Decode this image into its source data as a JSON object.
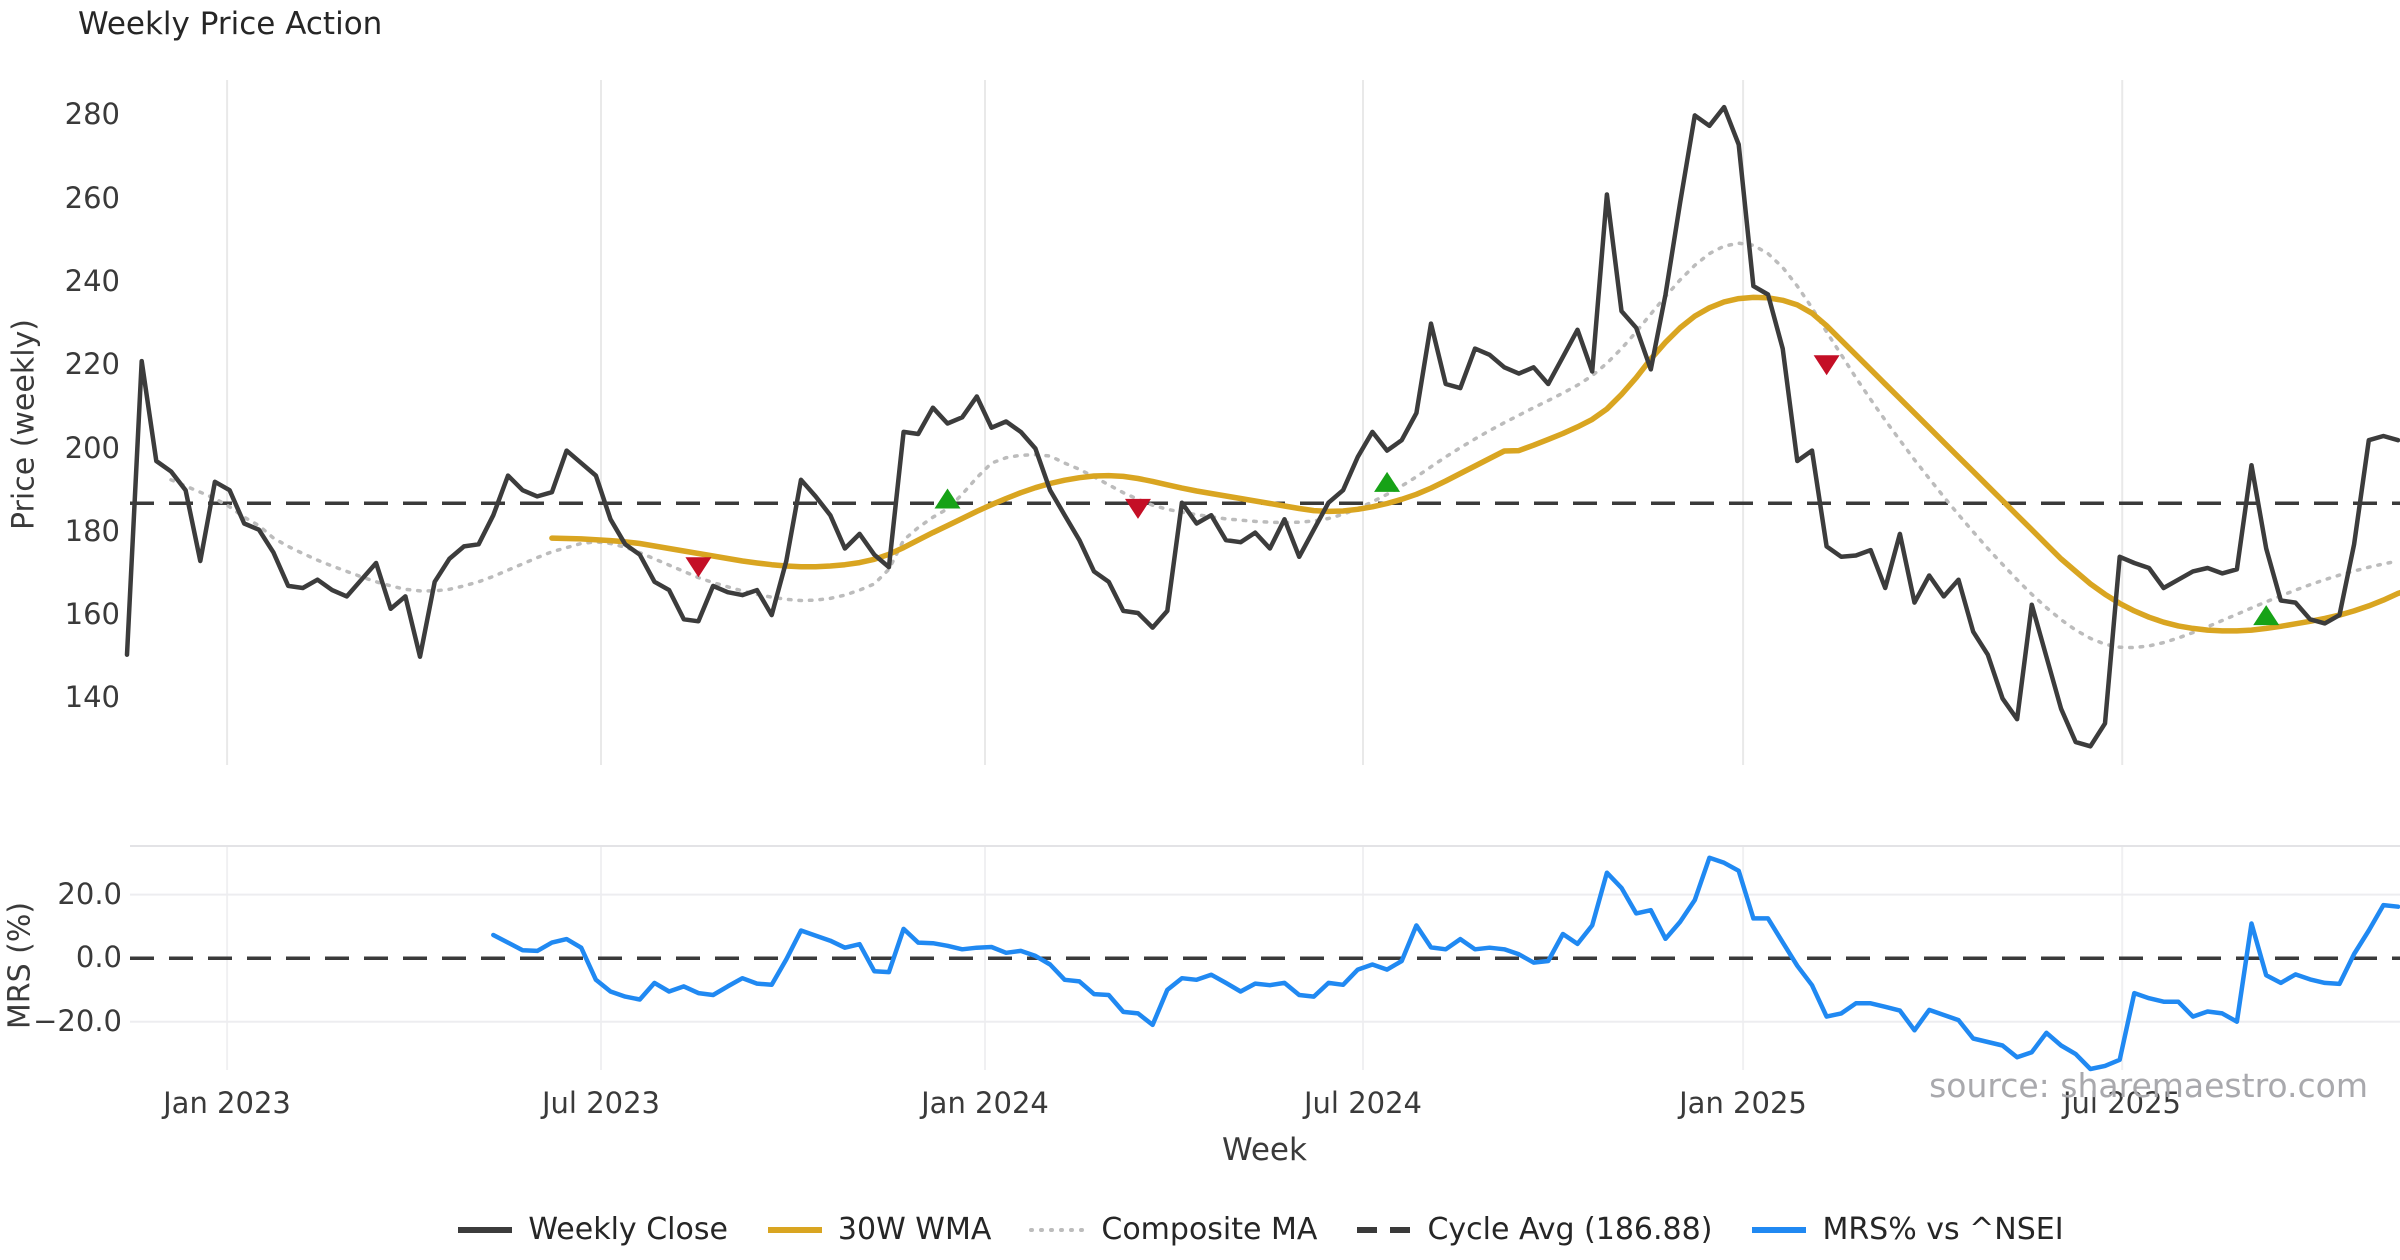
{
  "title": "Weekly Price Action",
  "watermark": "source: sharemaestro.com",
  "colors": {
    "close": "#3c3c3c",
    "wma": "#d9a521",
    "composite": "#bcbcbc",
    "cycle": "#3a3a3a",
    "mrs": "#2089f2",
    "buy": "#17a217",
    "sell": "#c40f26",
    "grid": "#e9e9e9",
    "panel_border": "#e3e3e6"
  },
  "x_axis": {
    "label": "Week",
    "ticks": [
      {
        "pos": 6.83,
        "label": "Jan 2023"
      },
      {
        "pos": 32.35,
        "label": "Jul 2023"
      },
      {
        "pos": 58.56,
        "label": "Jan 2024"
      },
      {
        "pos": 84.36,
        "label": "Jul 2024"
      },
      {
        "pos": 110.3,
        "label": "Jan 2025"
      },
      {
        "pos": 136.17,
        "label": "Jul 2025"
      }
    ]
  },
  "legend": [
    {
      "label": "Weekly Close",
      "style": "solid",
      "color": "close"
    },
    {
      "label": "30W WMA",
      "style": "solid",
      "color": "wma"
    },
    {
      "label": "Composite MA",
      "style": "dotted",
      "color": "composite"
    },
    {
      "label": "Cycle Avg (186.88)",
      "style": "dashed",
      "color": "cycle"
    },
    {
      "label": "MRS% vs ^NSEI",
      "style": "solid",
      "color": "mrs"
    }
  ],
  "chart_data": [
    {
      "id": "price",
      "type": "line",
      "title": "Weekly Price Action",
      "ylabel": "Price (weekly)",
      "x_unit": "week_index",
      "xlim": [
        0,
        155
      ],
      "ylim": [
        124,
        288.5
      ],
      "yticks": [
        140,
        160,
        180,
        200,
        220,
        240,
        260,
        280
      ],
      "grid": "vertical",
      "cycle_avg": 186.88,
      "series": [
        {
          "name": "Weekly Close",
          "start": 0,
          "values": [
            150.5,
            221,
            197,
            194.5,
            190,
            173,
            192,
            190,
            182,
            180.5,
            175,
            167,
            166.5,
            168.5,
            166,
            164.5,
            168.5,
            172.5,
            161.5,
            164.5,
            150,
            168,
            173.5,
            176.5,
            177,
            184,
            193.5,
            190,
            188.5,
            189.5,
            199.5,
            196.5,
            193.5,
            183,
            177,
            174.5,
            168,
            166,
            159,
            158.5,
            167,
            165.5,
            164.8,
            166,
            160,
            173,
            192.5,
            188.5,
            184,
            176,
            179.5,
            174.5,
            171.5,
            204,
            203.5,
            209.8,
            206,
            207.5,
            212.5,
            205,
            206.5,
            204,
            200,
            190,
            184,
            178,
            170.5,
            168,
            161,
            160.5,
            157,
            161,
            187,
            182,
            184,
            178,
            177.5,
            179.8,
            176,
            183,
            174,
            180.5,
            187,
            190,
            198,
            204,
            199.5,
            202,
            208.5,
            230,
            215.5,
            214.5,
            224,
            222.5,
            219.5,
            218,
            219.5,
            215.5,
            222,
            228.5,
            218.5,
            261,
            233,
            229,
            219,
            237,
            259,
            280,
            277.5,
            282,
            273,
            239,
            237,
            224,
            197,
            199.5,
            176.5,
            174,
            174.3,
            175.6,
            166.5,
            179.5,
            163,
            169.5,
            164.5,
            168.5,
            156,
            150.5,
            140,
            135,
            162.5,
            150,
            137.5,
            129.5,
            128.5,
            134,
            174,
            172.5,
            171.3,
            166.5,
            168.5,
            170.5,
            171.3,
            170,
            171,
            196,
            176,
            163.5,
            163,
            159,
            158,
            160,
            177,
            202,
            203,
            202
          ]
        },
        {
          "name": "30W WMA",
          "start": 29,
          "values": [
            178.5,
            178.4,
            178.3,
            178.1,
            177.9,
            177.6,
            177.2,
            176.6,
            176,
            175.4,
            174.8,
            174.2,
            173.6,
            173,
            172.5,
            172.1,
            171.8,
            171.6,
            171.6,
            171.8,
            172.1,
            172.6,
            173.4,
            174.6,
            176.2,
            178,
            179.8,
            181.5,
            183.2,
            184.9,
            186.5,
            188,
            189.4,
            190.6,
            191.6,
            192.4,
            193,
            193.4,
            193.5,
            193.3,
            192.8,
            192.1,
            191.3,
            190.5,
            189.8,
            189.2,
            188.6,
            188,
            187.4,
            186.8,
            186.2,
            185.6,
            185.1,
            184.9,
            185,
            185.4,
            186,
            186.8,
            187.8,
            189,
            190.5,
            192.2,
            194,
            195.8,
            197.6,
            199.4,
            199.5,
            200.8,
            202.2,
            203.6,
            205.2,
            207,
            209.5,
            213,
            217,
            221.5,
            225.5,
            229,
            231.8,
            233.8,
            235.2,
            236,
            236.3,
            236.2,
            235.6,
            234.5,
            232.5,
            229.5,
            226,
            222.5,
            219,
            215.5,
            212,
            208.5,
            205,
            201.5,
            198,
            194.5,
            191,
            187.5,
            184,
            180.5,
            177,
            173.5,
            170.5,
            167.5,
            165,
            162.8,
            161,
            159.5,
            158.3,
            157.4,
            156.8,
            156.4,
            156.2,
            156.2,
            156.4,
            156.8,
            157.3,
            157.9,
            158.5,
            159.2,
            160,
            161,
            162.2,
            163.6,
            165.2,
            166.3
          ]
        },
        {
          "name": "Composite MA",
          "start": 3,
          "values": [
            192.5,
            191,
            189.5,
            188,
            186,
            183.5,
            181.5,
            178.5,
            176.5,
            174.8,
            173.2,
            171.8,
            170.5,
            169.2,
            168,
            167,
            166.2,
            165.8,
            165.8,
            166.2,
            167,
            168,
            169.3,
            170.8,
            172.3,
            173.8,
            175.2,
            176.2,
            177.2,
            177.6,
            177.2,
            176.3,
            175,
            173.5,
            172,
            170.5,
            169,
            167.8,
            166.8,
            165.8,
            165,
            164.3,
            163.8,
            163.5,
            163.6,
            164,
            164.8,
            166,
            167.5,
            171,
            178,
            181,
            183.5,
            185.5,
            189,
            193,
            196.5,
            197.8,
            198.4,
            198.5,
            198.2,
            196.5,
            195,
            193.2,
            191.3,
            189.4,
            187.8,
            186.4,
            185.4,
            184.7,
            184.1,
            183.6,
            183.1,
            182.8,
            182.5,
            182.3,
            182.2,
            182.3,
            182.6,
            183.2,
            184.2,
            185.6,
            187.2,
            189,
            191,
            193.2,
            195.6,
            198,
            200.2,
            202.3,
            204.3,
            206.2,
            208,
            209.8,
            211.5,
            213.3,
            215.2,
            217.5,
            220.5,
            224,
            228,
            232.3,
            236.5,
            240.5,
            244,
            246.8,
            248.6,
            249.3,
            248.8,
            246.8,
            243.5,
            239,
            233.8,
            228,
            222.5,
            217,
            211.8,
            206.8,
            202,
            197.3,
            192.8,
            188.4,
            184.1,
            180,
            176,
            172.2,
            168.5,
            165,
            161.8,
            158.9,
            156.4,
            154.4,
            153,
            152.3,
            152.2,
            152.6,
            153.4,
            154.5,
            155.8,
            157.2,
            158.7,
            160.2,
            161.7,
            163.2,
            164.6,
            166,
            167.3,
            168.5,
            169.6,
            170.6,
            171.5,
            172.3,
            173
          ]
        }
      ],
      "buy_markers": [
        {
          "x": 56,
          "y": 188
        },
        {
          "x": 86,
          "y": 192
        },
        {
          "x": 146,
          "y": 160
        }
      ],
      "sell_markers": [
        {
          "x": 39,
          "y": 171.5
        },
        {
          "x": 69,
          "y": 185.5
        },
        {
          "x": 116,
          "y": 220
        }
      ]
    },
    {
      "id": "mrs",
      "type": "line",
      "ylabel": "MRS (%)",
      "xlabel": "Week",
      "x_unit": "week_index",
      "xlim": [
        0,
        155
      ],
      "ylim": [
        -35.2,
        35.3
      ],
      "yticks": [
        20,
        0,
        -20
      ],
      "ytick_labels": [
        "20.0",
        "0.0",
        "−20.0"
      ],
      "grid": "horizontal",
      "zero_line": 0,
      "series": [
        {
          "name": "MRS% vs ^NSEI",
          "start": 25,
          "values": [
            7.3,
            4.9,
            2.5,
            2.3,
            4.9,
            6,
            3.3,
            -6.8,
            -10.5,
            -12.1,
            -13,
            -7.8,
            -10.5,
            -8.9,
            -11,
            -11.6,
            -8.9,
            -6.3,
            -8,
            -8.4,
            -0.4,
            8.7,
            7.1,
            5.5,
            3.3,
            4.4,
            -4.1,
            -4.4,
            9.2,
            4.9,
            4.7,
            3.9,
            2.8,
            3.3,
            3.5,
            1.7,
            2.3,
            0.7,
            -2,
            -6.8,
            -7.3,
            -11.3,
            -11.6,
            -16.9,
            -17.4,
            -21,
            -10,
            -6.3,
            -6.8,
            -5.2,
            -7.8,
            -10.5,
            -8,
            -8.5,
            -7.8,
            -11.6,
            -12.1,
            -7.8,
            -8.4,
            -3.6,
            -2,
            -3.6,
            -0.9,
            10.3,
            3.4,
            2.8,
            6,
            2.8,
            3.3,
            2.8,
            1.2,
            -1.4,
            -0.9,
            7.6,
            4.5,
            10.3,
            26.9,
            22.1,
            14.1,
            15.1,
            6.1,
            11.4,
            18.3,
            31.6,
            30,
            27.5,
            12.5,
            12.5,
            5,
            -2.4,
            -8.5,
            -18.4,
            -17.4,
            -14.2,
            -14.2,
            -15.3,
            -16.5,
            -22.7,
            -16.3,
            -17.9,
            -19.5,
            -25.3,
            -26.4,
            -27.5,
            -31.2,
            -29.6,
            -23.5,
            -27.5,
            -30.2,
            -34.9,
            -33.9,
            -32,
            -11,
            -12.6,
            -13.7,
            -13.7,
            -18.4,
            -16.8,
            -17.4,
            -20,
            10.9,
            -5.4,
            -7.8,
            -5.1,
            -6.7,
            -7.8,
            -8.1,
            1.3,
            8.7,
            16.7,
            16.2
          ]
        }
      ]
    }
  ]
}
